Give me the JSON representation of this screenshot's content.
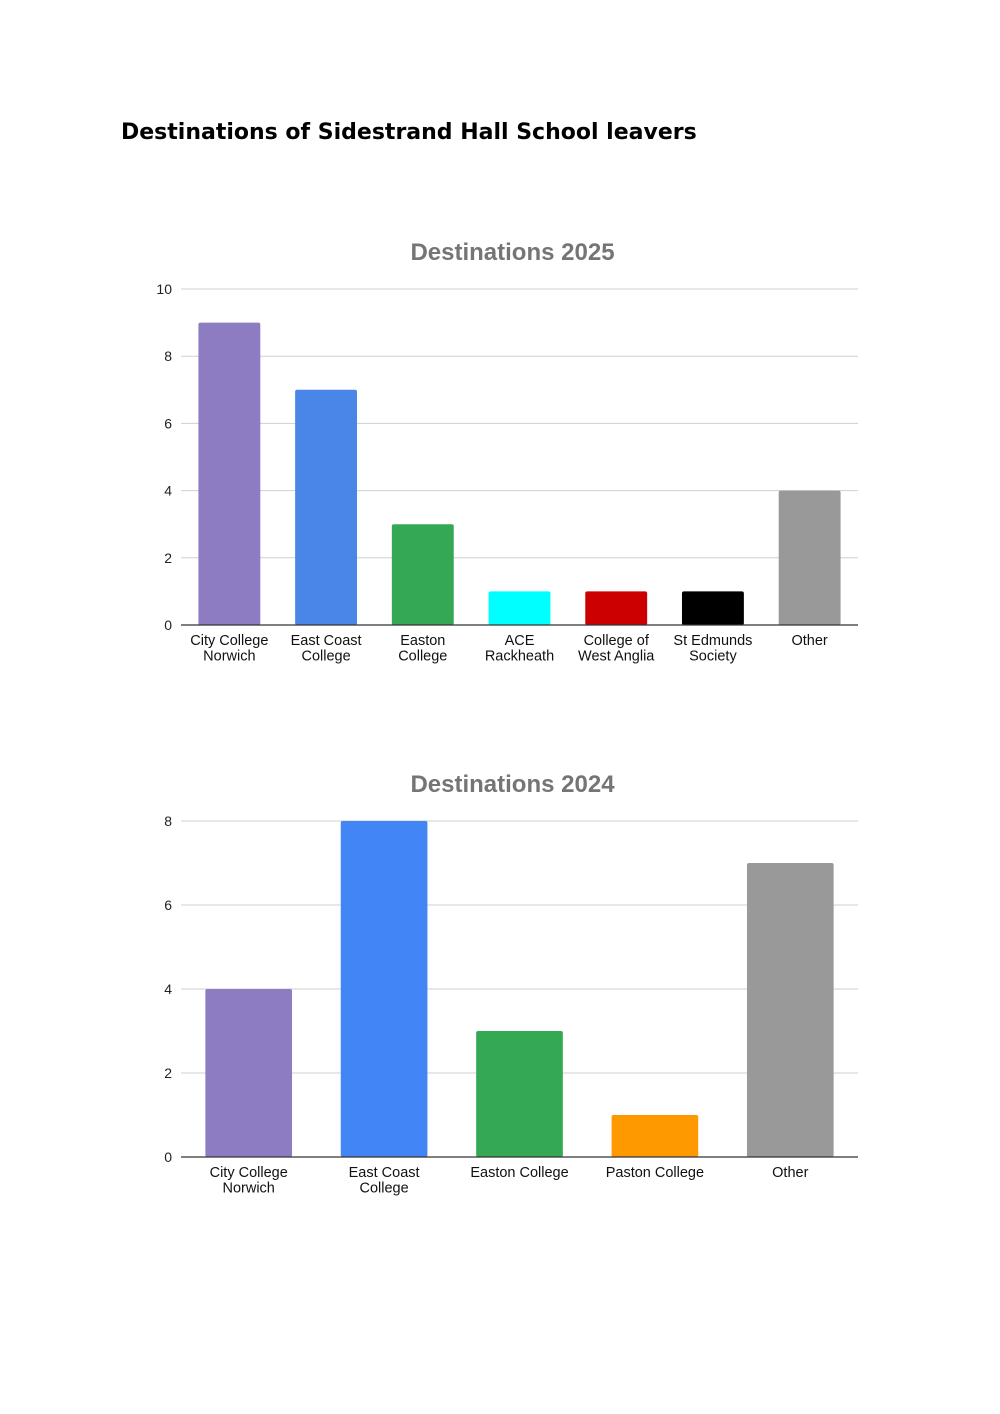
{
  "page": {
    "title": "Destinations of Sidestrand Hall School leavers"
  },
  "chart_data": [
    {
      "type": "bar",
      "title": "Destinations 2025",
      "xlabel": "",
      "ylabel": "",
      "ylim": [
        0,
        10
      ],
      "yticks": [
        0,
        2,
        4,
        6,
        8,
        10
      ],
      "grid": true,
      "legend": "none",
      "categories": [
        [
          "City College",
          "Norwich"
        ],
        [
          "East Coast",
          "College"
        ],
        [
          "Easton",
          "College"
        ],
        [
          "ACE",
          "Rackheath"
        ],
        [
          "College of",
          "West Anglia"
        ],
        [
          "St Edmunds",
          "Society"
        ],
        [
          "Other"
        ]
      ],
      "values": [
        9,
        7,
        3,
        1,
        1,
        1,
        4
      ],
      "colors": [
        "#8e7cc3",
        "#4a86e8",
        "#34a853",
        "#00ffff",
        "#cc0000",
        "#000000",
        "#999999"
      ]
    },
    {
      "type": "bar",
      "title": "Destinations 2024",
      "xlabel": "",
      "ylabel": "",
      "ylim": [
        0,
        8
      ],
      "yticks": [
        0,
        2,
        4,
        6,
        8
      ],
      "grid": true,
      "legend": "none",
      "categories": [
        [
          "City College",
          "Norwich"
        ],
        [
          "East Coast",
          "College"
        ],
        [
          "Easton College"
        ],
        [
          "Paston College"
        ],
        [
          "Other"
        ]
      ],
      "values": [
        4,
        8,
        3,
        1,
        7
      ],
      "colors": [
        "#8e7cc3",
        "#4285f4",
        "#34a853",
        "#ff9900",
        "#999999"
      ]
    }
  ]
}
